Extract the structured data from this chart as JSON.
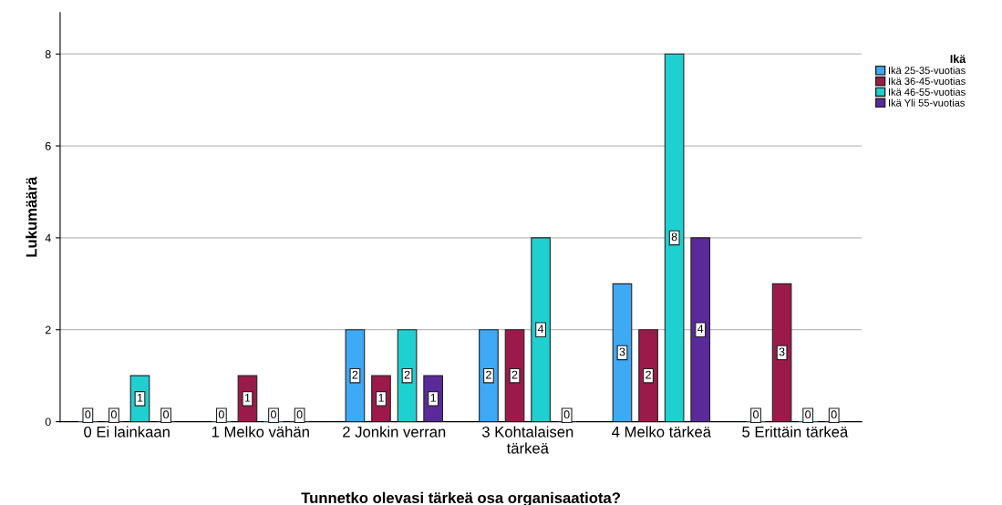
{
  "chart_data": {
    "type": "bar",
    "xlabel": "Tunnetko olevasi tärkeä osa organisaatiota?",
    "ylabel": "Lukumäärä",
    "legend_title": "Ikä",
    "categories": [
      "0 Ei lainkaan",
      "1 Melko vähän",
      "2 Jonkin verran",
      "3 Kohtalaisen\ntärkeä",
      "4 Melko tärkeä",
      "5 Erittäin tärkeä"
    ],
    "series": [
      {
        "name": "Ikä 25-35-vuotias",
        "color": "#3ea9f5",
        "values": [
          0,
          0,
          2,
          2,
          3,
          0
        ]
      },
      {
        "name": "Ikä 36-45-vuotias",
        "color": "#9c1a4a",
        "values": [
          0,
          1,
          1,
          2,
          2,
          3
        ]
      },
      {
        "name": "Ikä 46-55-vuotias",
        "color": "#1fd0d0",
        "values": [
          1,
          0,
          2,
          4,
          8,
          0
        ]
      },
      {
        "name": "Ikä Yli 55-vuotias",
        "color": "#5a2a9a",
        "values": [
          0,
          0,
          1,
          0,
          4,
          0
        ]
      }
    ],
    "ylim": [
      0,
      8.9
    ],
    "yticks": [
      0,
      2,
      4,
      6,
      8
    ],
    "grid": "y",
    "legend": "top right",
    "data_labels": true
  }
}
